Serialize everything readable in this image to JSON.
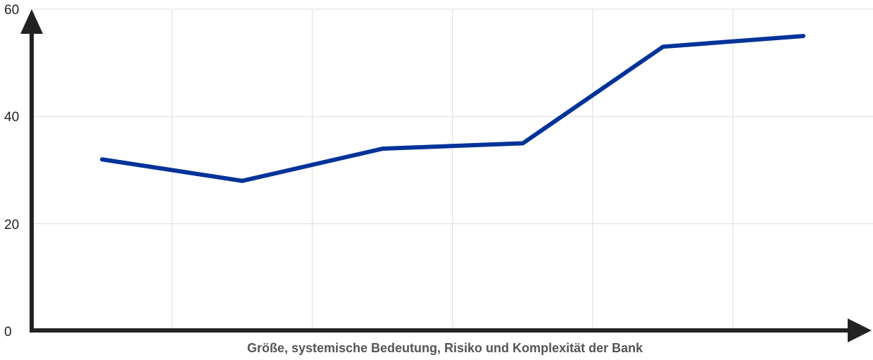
{
  "chart_data": {
    "type": "line",
    "xlabel": "Größe, systemische Bedeutung, Risiko und Komplexität der Bank",
    "ylabel": "",
    "ylim": [
      0,
      60
    ],
    "yticks": [
      "0",
      "20",
      "40",
      "60"
    ],
    "x": [
      1,
      2,
      3,
      4,
      5,
      6
    ],
    "series": [
      {
        "values": [
          32,
          28,
          34,
          35,
          53,
          55
        ],
        "color": "#003399"
      }
    ],
    "grid": true,
    "axis_color": "#222222"
  }
}
